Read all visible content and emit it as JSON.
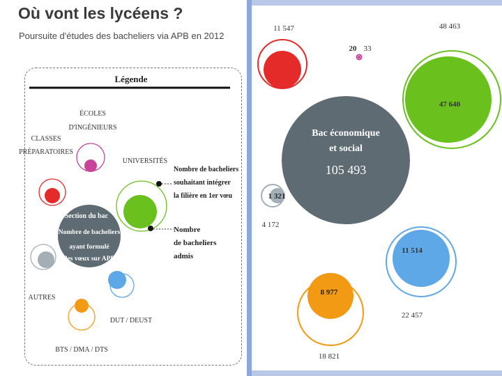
{
  "header": {
    "title": "Où vont les lycéens ?",
    "subtitle": "Poursuite d'études des bacheliers via APB en 2012"
  },
  "legend": {
    "title": "Légende",
    "categories": {
      "ecoles": [
        "ÉCOLES",
        "D'INGÉNIEURS"
      ],
      "classes": [
        "CLASSES",
        "PRÉPARATOIRES"
      ],
      "universites": "UNIVERSITÉS",
      "autres": "AUTRES",
      "dut": "DUT / DEUST",
      "bts": "BTS / DMA / DTS"
    },
    "center": [
      "Section du bac",
      "Nombre de bacheliers",
      "ayant formulé",
      "des vœux sur APB"
    ],
    "wished": [
      "Nombre de bacheliers",
      "souhaitant intégrer",
      "la filière en 1er vœu"
    ],
    "admitted": [
      "Nombre",
      "de bacheliers",
      "admis"
    ]
  },
  "colors": {
    "center": "#5e6b72",
    "cpge": "#e52a2a",
    "ecoles": "#c8449a",
    "universites": "#6ac11e",
    "autres": "#a4aeb5",
    "dut": "#5ea8e8",
    "bts": "#f39a14"
  },
  "chart_data": {
    "type": "bubble",
    "center": {
      "name": "Bac économique et social",
      "label_lines": [
        "Bac économique",
        "et social"
      ],
      "value": 105493,
      "value_label": "105 493"
    },
    "categories": [
      {
        "key": "cpge",
        "wished": 11547,
        "admitted": null,
        "wished_label": "11 547",
        "admitted_label": ""
      },
      {
        "key": "ecoles",
        "wished": 33,
        "admitted": 20,
        "wished_label": "33",
        "admitted_label": "20"
      },
      {
        "key": "universites",
        "wished": 48463,
        "admitted": 47640,
        "wished_label": "48 463",
        "admitted_label": "47 640"
      },
      {
        "key": "autres",
        "wished": 4172,
        "admitted": 1321,
        "wished_label": "4 172",
        "admitted_label": "1 321"
      },
      {
        "key": "dut",
        "wished": 22457,
        "admitted": 11514,
        "wished_label": "22 457",
        "admitted_label": "11 514"
      },
      {
        "key": "bts",
        "wished": 18821,
        "admitted": 8977,
        "wished_label": "18 821",
        "admitted_label": "8 977"
      }
    ]
  }
}
